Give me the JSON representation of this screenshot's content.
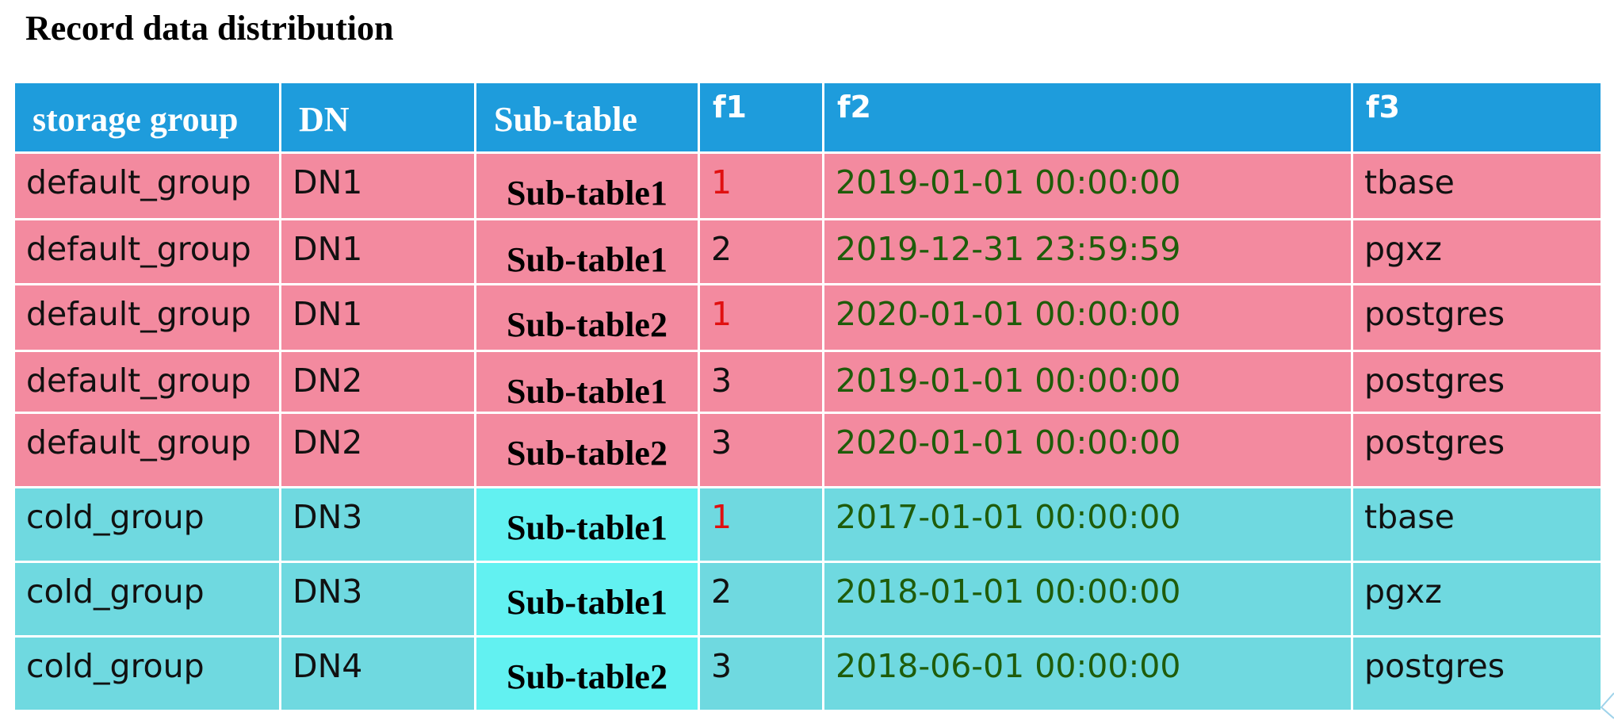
{
  "title": "Record data distribution",
  "columns": [
    "storage group",
    "DN",
    "Sub-table",
    "f1",
    "f2",
    "f3"
  ],
  "rows": [
    {
      "group": "default_group",
      "dn": "DN1",
      "subtable": "Sub-table1",
      "f1": "1",
      "f2": "2019-01-01 00:00:00",
      "f3": "tbase"
    },
    {
      "group": "default_group",
      "dn": "DN1",
      "subtable": "Sub-table1",
      "f1": "2",
      "f2": "2019-12-31 23:59:59",
      "f3": "pgxz"
    },
    {
      "group": "default_group",
      "dn": "DN1",
      "subtable": "Sub-table2",
      "f1": "1",
      "f2": "2020-01-01 00:00:00",
      "f3": "postgres"
    },
    {
      "group": "default_group",
      "dn": "DN2",
      "subtable": "Sub-table1",
      "f1": "3",
      "f2": "2019-01-01 00:00:00",
      "f3": "postgres"
    },
    {
      "group": "default_group",
      "dn": "DN2",
      "subtable": "Sub-table2",
      "f1": "3",
      "f2": "2020-01-01 00:00:00",
      "f3": "postgres"
    },
    {
      "group": "cold_group",
      "dn": "DN3",
      "subtable": "Sub-table1",
      "f1": "1",
      "f2": "2017-01-01 00:00:00",
      "f3": "tbase"
    },
    {
      "group": "cold_group",
      "dn": "DN3",
      "subtable": "Sub-table1",
      "f1": "2",
      "f2": "2018-01-01 00:00:00",
      "f3": "pgxz"
    },
    {
      "group": "cold_group",
      "dn": "DN4",
      "subtable": "Sub-table2",
      "f1": "3",
      "f2": "2018-06-01 00:00:00",
      "f3": "postgres"
    }
  ],
  "colors": {
    "header": "#1e9cdc",
    "default_group_row": "#f38a9f",
    "cold_group_row": "#6fd9e0",
    "cold_group_subtable": "#62f1f1",
    "f1_value_one": "#e01010",
    "f2_text": "#1f5c0a"
  }
}
